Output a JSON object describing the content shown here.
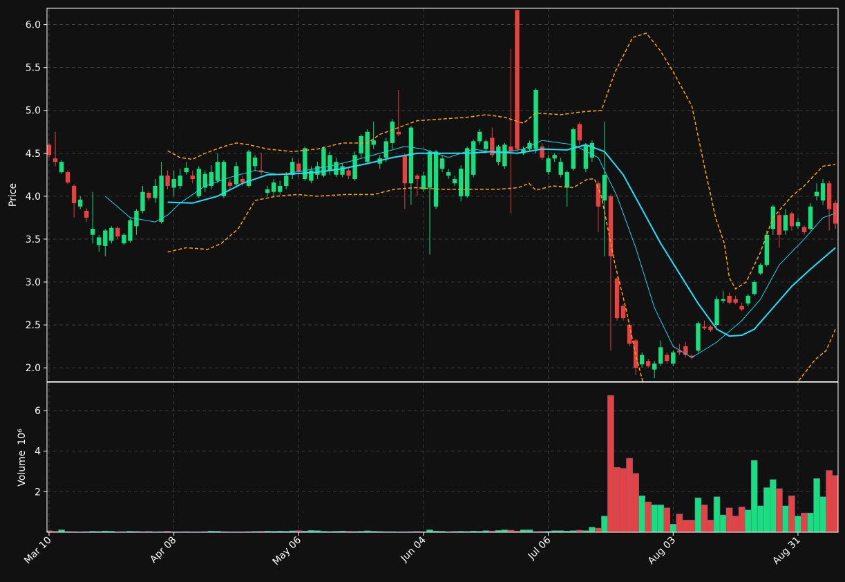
{
  "chart_data": [
    {
      "type": "candlestick",
      "y_label": "Price",
      "categories": [
        "Mar 10",
        null,
        null,
        null,
        null,
        null,
        null,
        null,
        null,
        null,
        null,
        null,
        null,
        null,
        null,
        null,
        null,
        null,
        null,
        null,
        "Apr 08",
        null,
        null,
        null,
        null,
        null,
        null,
        null,
        null,
        null,
        null,
        null,
        null,
        null,
        null,
        null,
        null,
        null,
        null,
        null,
        "May 06",
        null,
        null,
        null,
        null,
        null,
        null,
        null,
        null,
        null,
        null,
        null,
        null,
        null,
        null,
        null,
        null,
        null,
        null,
        null,
        "Jun 04",
        null,
        null,
        null,
        null,
        null,
        null,
        null,
        null,
        null,
        null,
        null,
        null,
        null,
        null,
        null,
        null,
        null,
        null,
        null,
        "Jul 06",
        null,
        null,
        null,
        null,
        null,
        null,
        null,
        null,
        null,
        null,
        null,
        null,
        null,
        null,
        null,
        null,
        null,
        null,
        null,
        "Aug 03",
        null,
        null,
        null,
        null,
        null,
        null,
        null,
        null,
        null,
        null,
        null,
        null,
        null,
        null,
        null,
        null,
        null,
        null,
        null,
        "Aug 31",
        null,
        null,
        null,
        null,
        null,
        null
      ],
      "open": [
        4.6,
        4.44,
        4.28,
        4.28,
        4.12,
        3.88,
        3.83,
        3.55,
        3.43,
        3.42,
        3.48,
        3.63,
        3.45,
        3.48,
        3.65,
        3.83,
        4.04,
        3.98,
        3.7,
        4.24,
        4.1,
        4.12,
        4.28,
        4.24,
        4.0,
        4.1,
        4.12,
        4.18,
        4.0,
        4.16,
        4.14,
        4.2,
        4.12,
        4.35,
        4.3,
        4.04,
        4.05,
        4.05,
        4.12,
        4.25,
        4.38,
        4.2,
        4.18,
        4.25,
        4.24,
        4.3,
        4.25,
        4.25,
        4.3,
        4.2,
        4.5,
        4.4,
        4.6,
        4.38,
        4.45,
        4.62,
        4.75,
        4.48,
        4.15,
        4.24,
        4.08,
        4.1,
        3.88,
        4.32,
        4.24,
        4.15,
        4.0,
        4.0,
        4.25,
        4.64,
        4.55,
        4.68,
        4.4,
        4.35,
        4.58,
        6.17,
        4.5,
        4.55,
        4.55,
        4.58,
        4.28,
        4.44,
        4.25,
        4.1,
        4.32,
        4.84,
        4.32,
        4.45,
        4.15,
        3.95,
        4.0,
        3.04,
        2.72,
        2.5,
        2.32,
        2.04,
        2.08,
        1.98,
        2.05,
        2.15,
        2.05,
        2.2,
        2.25,
        2.14,
        2.2,
        2.48,
        2.48,
        2.5,
        2.78,
        2.84,
        2.8,
        2.72,
        2.75,
        2.86,
        3.1,
        3.2,
        3.62,
        3.78,
        3.6,
        3.8,
        3.65,
        3.64,
        3.62,
        4.0,
        3.95,
        4.15,
        3.92
      ],
      "high": [
        4.62,
        4.75,
        4.42,
        4.3,
        4.14,
        4.0,
        3.86,
        4.05,
        3.55,
        3.62,
        3.65,
        3.65,
        3.57,
        3.74,
        3.85,
        4.12,
        4.06,
        4.2,
        4.4,
        4.3,
        4.3,
        4.32,
        4.4,
        4.3,
        4.35,
        4.3,
        4.36,
        4.5,
        4.42,
        4.2,
        4.4,
        4.24,
        4.54,
        4.48,
        4.5,
        4.12,
        4.2,
        4.18,
        4.28,
        4.45,
        4.42,
        4.58,
        4.35,
        4.4,
        4.58,
        4.52,
        4.45,
        4.38,
        4.34,
        4.52,
        4.72,
        4.78,
        4.87,
        4.48,
        4.68,
        4.9,
        5.24,
        4.5,
        4.82,
        4.26,
        4.28,
        4.54,
        4.54,
        4.48,
        4.32,
        4.24,
        4.36,
        4.58,
        4.66,
        4.78,
        4.66,
        4.8,
        4.6,
        4.62,
        5.72,
        6.17,
        4.58,
        4.65,
        5.26,
        4.62,
        4.48,
        4.5,
        4.45,
        4.3,
        4.8,
        4.86,
        4.62,
        4.65,
        4.18,
        4.87,
        4.02,
        3.06,
        2.74,
        2.52,
        2.34,
        2.18,
        2.1,
        2.08,
        2.32,
        2.18,
        2.2,
        2.28,
        2.3,
        2.16,
        2.54,
        2.55,
        2.5,
        2.84,
        2.9,
        2.88,
        2.84,
        2.76,
        2.86,
        3.02,
        3.22,
        3.6,
        3.9,
        3.82,
        3.85,
        3.82,
        3.75,
        3.66,
        3.92,
        4.15,
        4.2,
        4.18,
        3.95
      ],
      "low": [
        4.45,
        4.35,
        4.26,
        4.14,
        3.75,
        3.85,
        3.7,
        3.45,
        3.35,
        3.3,
        3.45,
        3.5,
        3.43,
        3.46,
        3.55,
        3.8,
        3.95,
        3.92,
        3.68,
        4.08,
        4.0,
        4.08,
        4.25,
        4.15,
        3.98,
        4.05,
        4.08,
        4.15,
        3.98,
        4.08,
        4.1,
        4.12,
        4.1,
        4.3,
        4.25,
        4.0,
        4.0,
        4.02,
        4.08,
        4.2,
        4.22,
        4.18,
        4.15,
        4.2,
        4.22,
        4.25,
        4.22,
        4.22,
        4.2,
        4.18,
        4.45,
        4.38,
        4.55,
        4.32,
        4.4,
        4.55,
        4.7,
        3.85,
        3.9,
        4.0,
        4.05,
        3.32,
        3.85,
        4.28,
        4.2,
        4.12,
        3.94,
        3.98,
        4.22,
        4.6,
        4.5,
        4.45,
        4.36,
        4.32,
        3.8,
        4.5,
        4.48,
        4.52,
        4.5,
        4.42,
        4.25,
        4.4,
        4.22,
        3.88,
        4.3,
        4.6,
        4.28,
        4.4,
        3.58,
        3.3,
        2.2,
        2.55,
        2.55,
        2.25,
        1.92,
        2.0,
        2.0,
        1.88,
        2.02,
        2.05,
        2.02,
        2.15,
        2.12,
        2.1,
        2.18,
        2.44,
        2.42,
        2.48,
        2.75,
        2.74,
        2.74,
        2.66,
        2.72,
        2.84,
        3.08,
        3.18,
        3.55,
        3.4,
        3.55,
        3.6,
        3.62,
        3.55,
        3.6,
        3.95,
        3.9,
        3.6,
        3.62
      ],
      "close": [
        4.48,
        4.4,
        4.4,
        4.16,
        3.92,
        3.96,
        3.75,
        3.62,
        3.52,
        3.6,
        3.63,
        3.53,
        3.55,
        3.72,
        3.83,
        4.05,
        3.98,
        4.12,
        4.24,
        4.12,
        4.2,
        4.24,
        4.33,
        4.2,
        4.32,
        4.26,
        4.28,
        4.4,
        4.4,
        4.12,
        4.35,
        4.16,
        4.52,
        4.45,
        4.28,
        4.08,
        4.16,
        4.12,
        4.24,
        4.4,
        4.28,
        4.56,
        4.3,
        4.35,
        4.56,
        4.48,
        4.4,
        4.35,
        4.24,
        4.48,
        4.7,
        4.75,
        4.65,
        4.44,
        4.64,
        4.87,
        4.72,
        4.15,
        4.8,
        4.2,
        4.24,
        4.52,
        4.52,
        4.44,
        4.28,
        4.2,
        4.32,
        4.56,
        4.64,
        4.75,
        4.64,
        4.48,
        4.58,
        4.6,
        4.52,
        4.55,
        4.55,
        4.62,
        5.24,
        4.45,
        4.44,
        4.48,
        4.4,
        4.28,
        4.78,
        4.65,
        4.6,
        4.62,
        3.88,
        4.25,
        3.3,
        2.58,
        2.58,
        2.28,
        2.0,
        2.15,
        2.02,
        2.05,
        2.24,
        2.08,
        2.18,
        2.18,
        2.15,
        2.12,
        2.52,
        2.46,
        2.44,
        2.8,
        2.8,
        2.76,
        2.76,
        2.68,
        2.84,
        3.0,
        3.2,
        3.55,
        3.88,
        3.55,
        3.78,
        3.65,
        3.7,
        3.58,
        3.88,
        4.05,
        4.15,
        3.85,
        3.68
      ],
      "up_color": "#16e07e",
      "down_color": "#e84142",
      "ylim": [
        1.84,
        6.19
      ],
      "yticks": [
        {
          "value": 2,
          "label": "2.0"
        },
        {
          "value": 2.5,
          "label": "2.5"
        },
        {
          "value": 3,
          "label": "3.0"
        },
        {
          "value": 3.5,
          "label": "3.5"
        },
        {
          "value": 4,
          "label": "4.0"
        },
        {
          "value": 4.5,
          "label": "4.5"
        },
        {
          "value": 5,
          "label": "5.0"
        },
        {
          "value": 5.5,
          "label": "5.5"
        },
        {
          "value": 6,
          "label": "6.0"
        }
      ],
      "grid": true,
      "lines": [
        {
          "color": "#22d3e6",
          "width": 1,
          "dashed": false,
          "x": [
            9,
            13,
            17,
            19,
            21,
            25,
            29,
            33,
            37,
            41,
            45,
            49,
            53,
            57,
            60,
            64,
            68,
            72,
            76,
            79,
            84,
            88,
            91,
            94,
            97,
            100,
            103,
            107,
            111,
            114,
            117,
            121,
            124,
            126
          ],
          "values": [
            4.0,
            3.75,
            3.7,
            3.78,
            3.92,
            4.12,
            4.22,
            4.3,
            4.25,
            4.3,
            4.35,
            4.42,
            4.5,
            4.58,
            4.55,
            4.45,
            4.55,
            4.5,
            4.55,
            4.65,
            4.6,
            4.45,
            4.0,
            3.4,
            2.7,
            2.25,
            2.12,
            2.3,
            2.55,
            2.8,
            3.2,
            3.5,
            3.75,
            3.8
          ]
        },
        {
          "color": "#1ee3ff",
          "width": 2,
          "dashed": false,
          "x": [
            19,
            23,
            27,
            31,
            35,
            39,
            43,
            47,
            51,
            55,
            59,
            63,
            67,
            71,
            75,
            79,
            83,
            86,
            89,
            92,
            95,
            98,
            101,
            104,
            107,
            109,
            111,
            113,
            116,
            119,
            122,
            126
          ],
          "values": [
            3.93,
            3.92,
            4.0,
            4.15,
            4.25,
            4.26,
            4.28,
            4.32,
            4.38,
            4.45,
            4.5,
            4.5,
            4.5,
            4.52,
            4.5,
            4.55,
            4.54,
            4.6,
            4.52,
            4.25,
            3.85,
            3.45,
            3.1,
            2.75,
            2.45,
            2.37,
            2.38,
            2.45,
            2.7,
            2.95,
            3.15,
            3.4
          ]
        },
        {
          "color": "#ffa500",
          "width": 1.5,
          "dashed": true,
          "x": [
            19,
            21,
            23,
            25,
            28,
            30,
            32,
            35,
            39,
            43,
            47,
            51,
            53,
            56,
            59,
            63,
            67,
            70,
            73,
            76,
            78,
            82,
            85,
            88.5,
            90.7,
            93.5,
            95.7,
            97.9,
            100,
            103,
            105,
            106.8,
            108.2,
            109,
            110,
            111.7,
            114,
            116,
            119,
            121,
            124,
            126
          ],
          "values": [
            4.53,
            4.45,
            4.43,
            4.5,
            4.58,
            4.62,
            4.6,
            4.55,
            4.52,
            4.55,
            4.62,
            4.62,
            4.72,
            4.8,
            4.88,
            4.9,
            4.92,
            4.95,
            4.92,
            4.85,
            4.97,
            4.95,
            4.98,
            5.0,
            5.45,
            5.85,
            5.9,
            5.7,
            5.45,
            5.05,
            4.35,
            3.75,
            3.45,
            3.05,
            2.92,
            3.0,
            3.35,
            3.75,
            4.0,
            4.12,
            4.35,
            4.37
          ]
        },
        {
          "color": "#ffa500",
          "width": 1.5,
          "dashed": true,
          "x": [
            19,
            22,
            25.4,
            27.6,
            30.3,
            33,
            36.4,
            39.8,
            43,
            47.5,
            52,
            55.3,
            58.6,
            63,
            66.3,
            71.9,
            75.2,
            76.9,
            78,
            80.7,
            84,
            86.3,
            87.4,
            88.5,
            90.7,
            92.4,
            94,
            96,
            null,
            119,
            120,
            122.8,
            124.5,
            126
          ],
          "values": [
            3.35,
            3.4,
            3.38,
            3.45,
            3.62,
            3.95,
            4.0,
            4.02,
            4.0,
            4.02,
            4.02,
            4.08,
            4.1,
            4.08,
            4.08,
            4.08,
            4.1,
            4.15,
            4.07,
            4.12,
            4.1,
            4.2,
            4.2,
            4.0,
            3.2,
            2.7,
            2.15,
            1.6,
            null,
            1.75,
            1.84,
            2.1,
            2.2,
            2.45
          ]
        }
      ]
    },
    {
      "type": "bar",
      "y_label": "Volume",
      "y_label_unit": "10⁶",
      "values": [
        0.08,
        0.05,
        0.12,
        0.04,
        0.03,
        0.02,
        0.03,
        0.05,
        0.04,
        0.06,
        0.05,
        0.02,
        0.03,
        0.05,
        0.04,
        0.03,
        0.04,
        0.02,
        0.03,
        0.05,
        0.02,
        0.02,
        0.03,
        0.02,
        0.02,
        0.03,
        0.06,
        0.05,
        0.03,
        0.02,
        0.02,
        0.02,
        0.03,
        0.04,
        0.05,
        0.06,
        0.05,
        0.06,
        0.05,
        0.07,
        0.08,
        0.06,
        0.09,
        0.08,
        0.05,
        0.04,
        0.05,
        0.06,
        0.05,
        0.04,
        0.05,
        0.07,
        0.05,
        0.04,
        0.03,
        0.03,
        0.02,
        0.02,
        0.03,
        0.04,
        0.03,
        0.12,
        0.06,
        0.05,
        0.03,
        0.04,
        0.05,
        0.04,
        0.06,
        0.05,
        0.08,
        0.06,
        0.09,
        0.12,
        0.1,
        0.06,
        0.12,
        0.12,
        0.03,
        0.04,
        0.05,
        0.08,
        0.08,
        0.06,
        0.08,
        0.1,
        0.08,
        0.25,
        0.2,
        0.8,
        6.75,
        3.2,
        3.15,
        3.65,
        2.9,
        1.8,
        1.5,
        1.35,
        1.35,
        1.2,
        0.4,
        0.9,
        0.6,
        0.6,
        1.7,
        1.35,
        0.6,
        1.75,
        0.85,
        1.2,
        0.8,
        1.25,
        1.1,
        3.55,
        1.3,
        2.2,
        2.6,
        2.15,
        1.3,
        1.8,
        0.8,
        0.95,
        0.95,
        2.65,
        1.75,
        3.05,
        2.8
      ],
      "ylim": [
        0,
        7.4
      ],
      "yticks": [
        2,
        4,
        6
      ],
      "grid": true
    }
  ]
}
